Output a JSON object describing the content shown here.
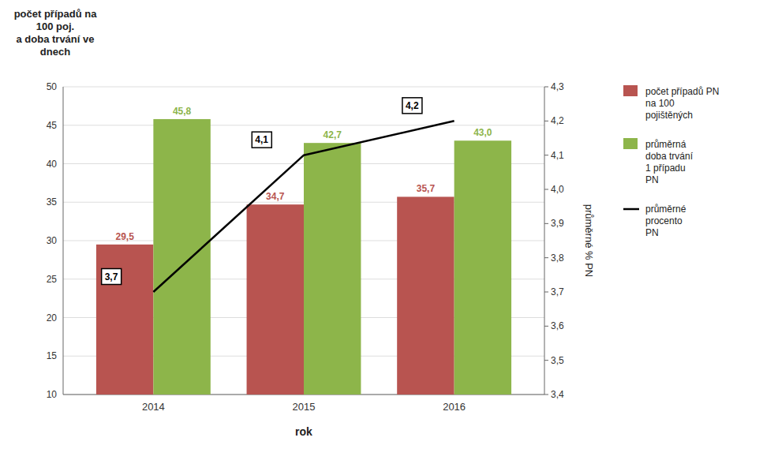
{
  "chart_data": {
    "type": "bar",
    "categories": [
      "2014",
      "2015",
      "2016"
    ],
    "x_label": "rok",
    "y_label": "počet případů na\n100 poj.\na doba trvání ve\ndnech",
    "y2_label": "průměrné % PN",
    "series": [
      {
        "name": "počet případů PN\nna 100\npojištěných",
        "color": "#b85450",
        "values": [
          29.5,
          34.7,
          35.7
        ],
        "value_labels": [
          "29,5",
          "34,7",
          "35,7"
        ]
      },
      {
        "name": "průměrná\ndoba trvání\n1 případu\nPN",
        "color": "#8db54a",
        "values": [
          45.8,
          42.7,
          43.0
        ],
        "value_labels": [
          "45,8",
          "42,7",
          "43,0"
        ]
      },
      {
        "name": "průměrné\nprocento\nPN",
        "type": "line",
        "axis": "y2",
        "color": "#000000",
        "values": [
          3.7,
          4.1,
          4.2
        ],
        "value_labels": [
          "3,7",
          "4,1",
          "4,2"
        ]
      }
    ],
    "ylim": [
      10,
      50
    ],
    "yticks": [
      10,
      15,
      20,
      25,
      30,
      35,
      40,
      45,
      50
    ],
    "y2lim": [
      3.4,
      4.3
    ],
    "y2ticks": [
      {
        "value": 3.4,
        "label": "3,4"
      },
      {
        "value": 3.5,
        "label": "3,5"
      },
      {
        "value": 3.6,
        "label": "3,6"
      },
      {
        "value": 3.7,
        "label": "3,7"
      },
      {
        "value": 3.8,
        "label": "3,8"
      },
      {
        "value": 3.9,
        "label": "3,9"
      },
      {
        "value": 4.0,
        "label": "4,0"
      },
      {
        "value": 4.1,
        "label": "4,1"
      },
      {
        "value": 4.2,
        "label": "4,2"
      },
      {
        "value": 4.3,
        "label": "4,3"
      }
    ],
    "grid": true,
    "legend": "right",
    "data_labels": true
  }
}
